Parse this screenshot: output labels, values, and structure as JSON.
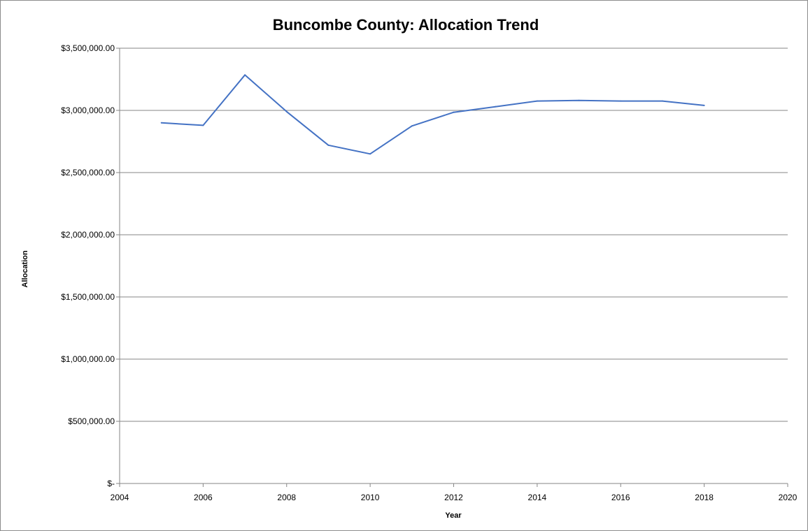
{
  "chart_data": {
    "type": "line",
    "title": "Buncombe County: Allocation Trend",
    "xlabel": "Year",
    "ylabel": "Allocation",
    "xlim": [
      2004,
      2020
    ],
    "ylim": [
      0,
      3500000
    ],
    "x_ticks": [
      2004,
      2006,
      2008,
      2010,
      2012,
      2014,
      2016,
      2018,
      2020
    ],
    "x_tick_labels": [
      "2004",
      "2006",
      "2008",
      "2010",
      "2012",
      "2014",
      "2016",
      "2018",
      "2020"
    ],
    "y_ticks": [
      0,
      500000,
      1000000,
      1500000,
      2000000,
      2500000,
      3000000,
      3500000
    ],
    "y_tick_labels": [
      "$-",
      "$500,000.00",
      "$1,000,000.00",
      "$1,500,000.00",
      "$2,000,000.00",
      "$2,500,000.00",
      "$3,000,000.00",
      "$3,500,000.00"
    ],
    "grid": "horizontal",
    "legend": "none",
    "series": [
      {
        "color": "#4472c4",
        "x": [
          2005,
          2006,
          2007,
          2008,
          2009,
          2010,
          2011,
          2012,
          2013,
          2014,
          2015,
          2016,
          2017,
          2018
        ],
        "values": [
          2900000,
          2880000,
          3285000,
          2990000,
          2720000,
          2650000,
          2875000,
          2985000,
          3030000,
          3075000,
          3080000,
          3075000,
          3075000,
          3040000
        ]
      }
    ]
  }
}
